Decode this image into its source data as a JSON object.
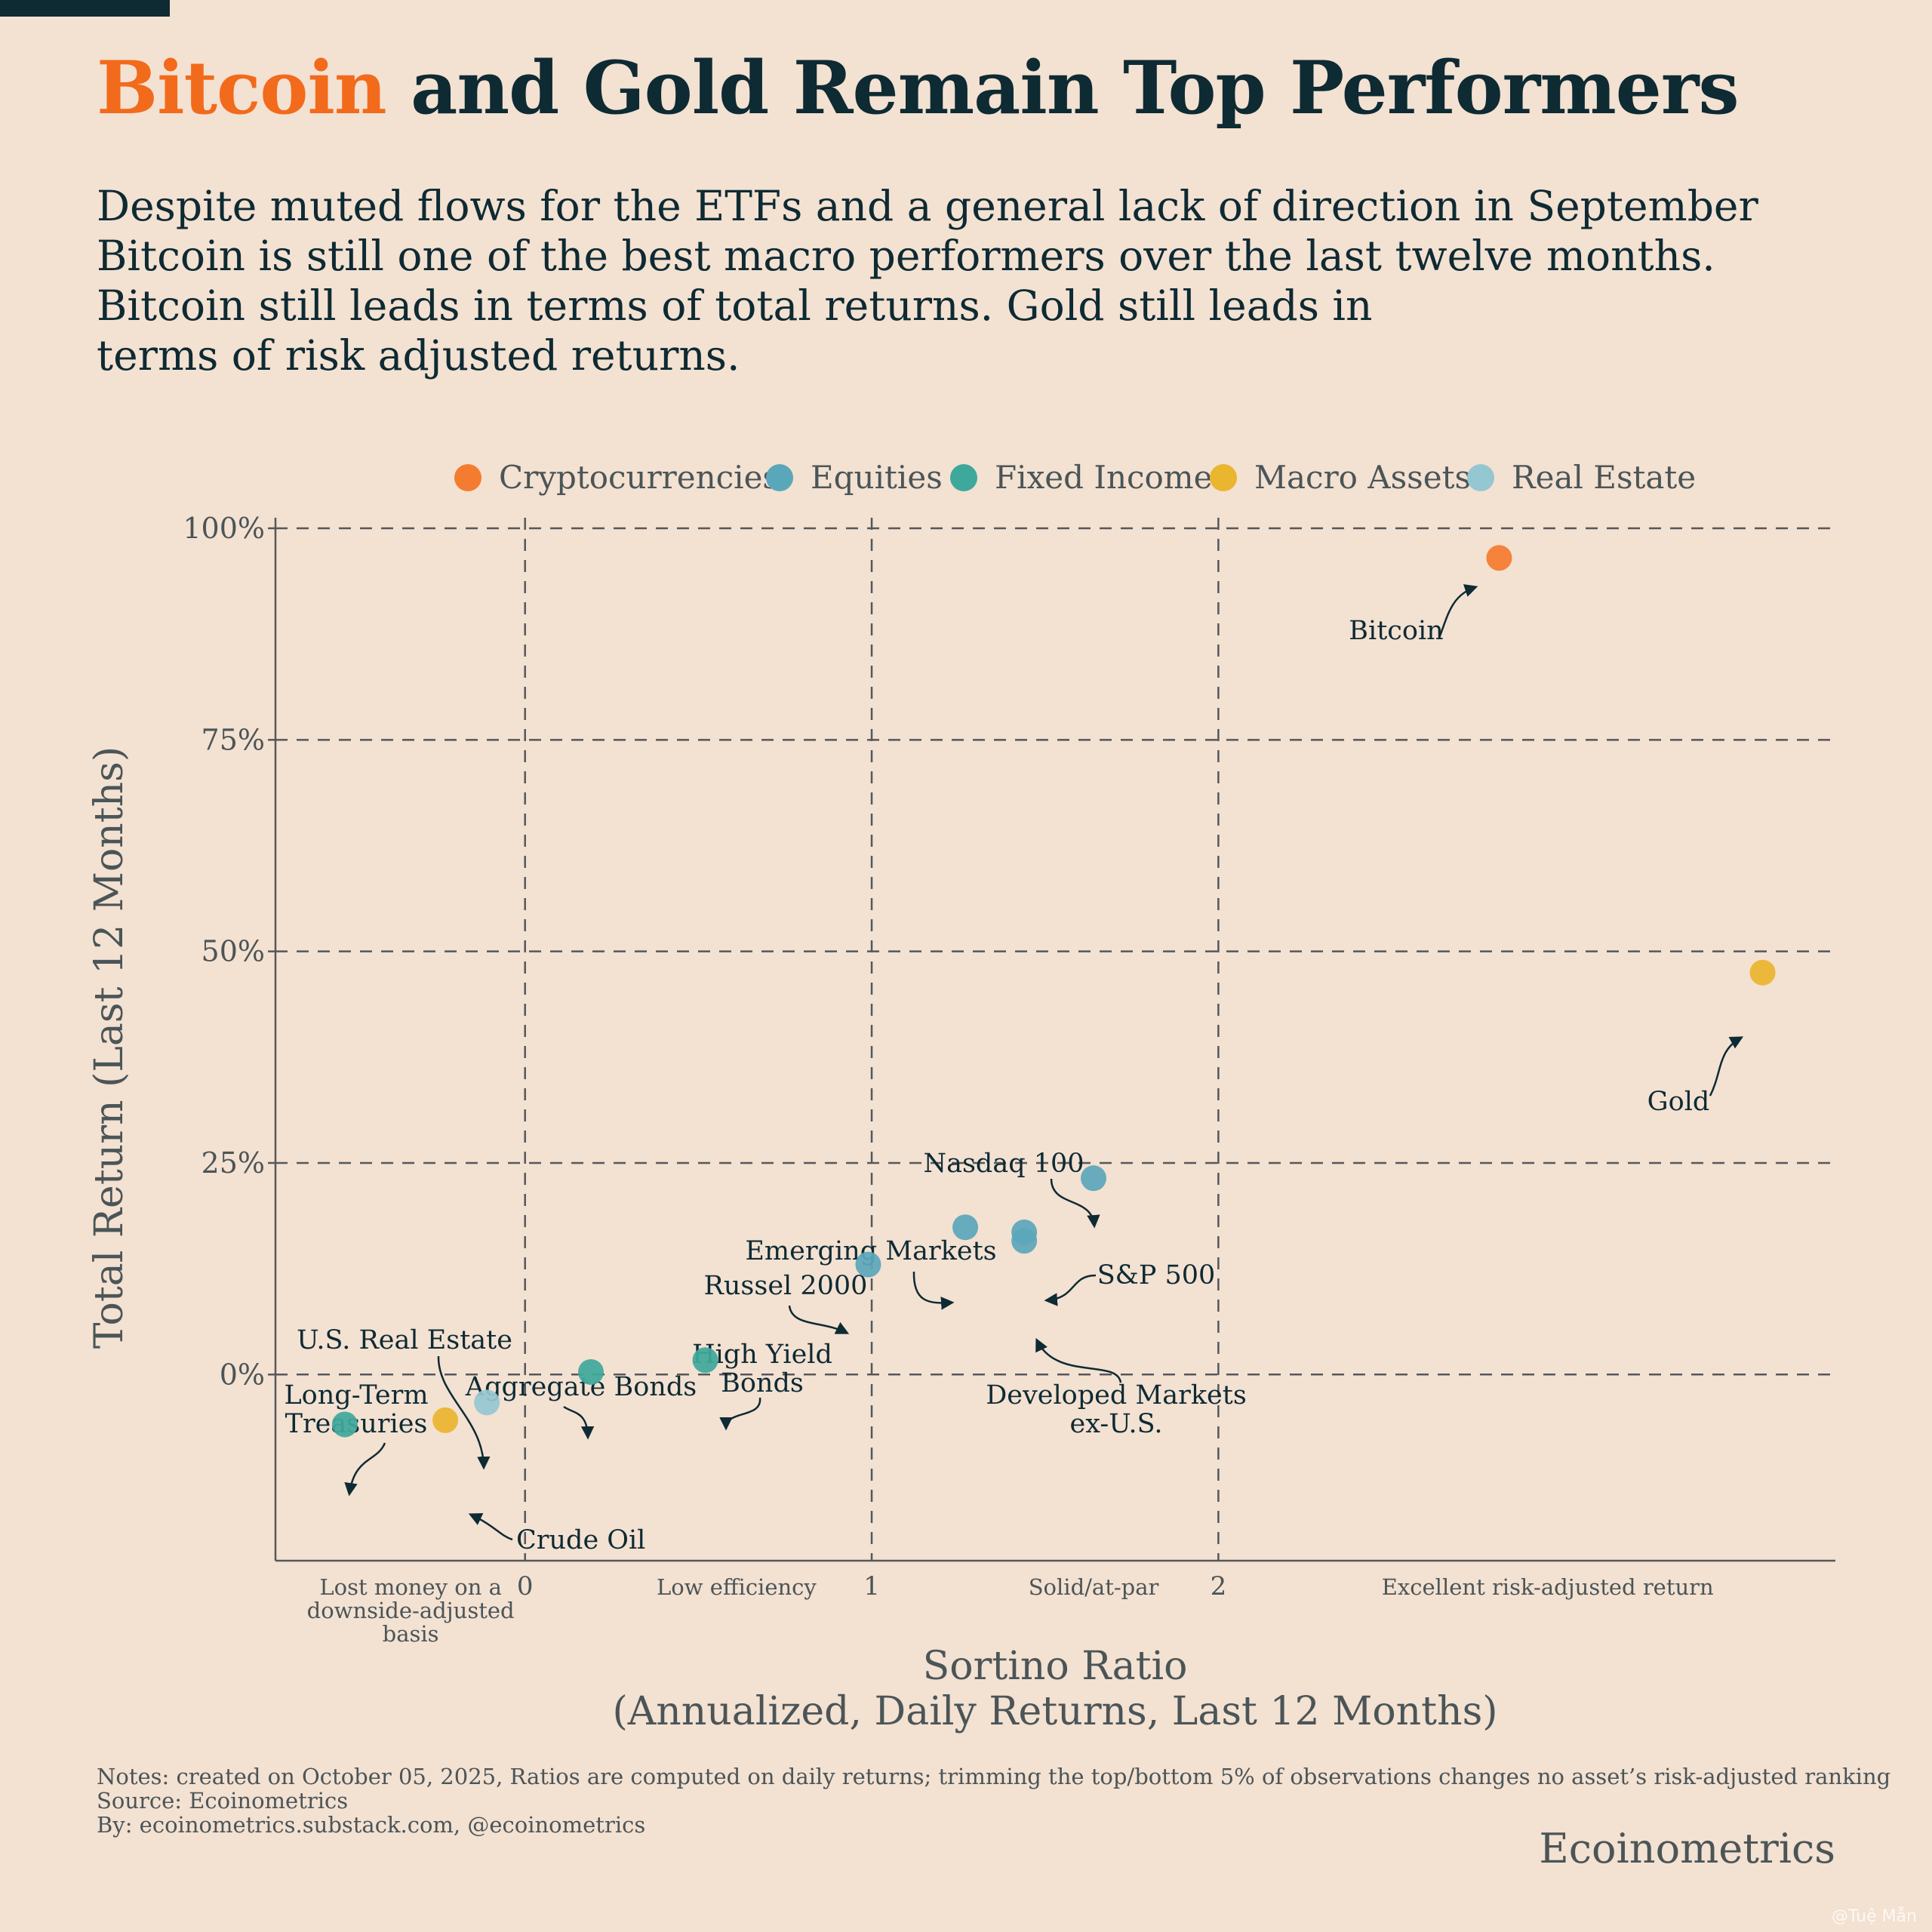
{
  "title": {
    "highlight": "Bitcoin",
    "rest": " and Gold Remain Top Performers"
  },
  "subtitle": [
    "Despite muted flows for the ETFs and a general lack of direction in September",
    "Bitcoin is still one of the best macro performers over the last twelve months.",
    "Bitcoin still leads in terms of total returns. Gold still leads in",
    "terms of risk adjusted returns."
  ],
  "colors": {
    "background": "#f3e1d2",
    "title_accent": "#f26a1b",
    "text": "#0e2a33",
    "muted_text": "#4b5557",
    "grid": "#55585a"
  },
  "chart_data": {
    "type": "scatter",
    "xlabel": [
      "Sortino Ratio",
      "(Annualized, Daily Returns, Last 12 Months)"
    ],
    "ylabel": "Total Return (Last 12 Months)",
    "xlim": [
      -0.72,
      3.78
    ],
    "ylim": [
      -0.22,
      1.0
    ],
    "x_ticks": [
      0,
      1,
      2
    ],
    "y_ticks": [
      {
        "value": 0,
        "label": "0%"
      },
      {
        "value": 0.25,
        "label": "25%"
      },
      {
        "value": 0.5,
        "label": "50%"
      },
      {
        "value": 0.75,
        "label": "75%"
      },
      {
        "value": 1.0,
        "label": "100%"
      }
    ],
    "region_labels": [
      {
        "text": [
          "Lost money on a",
          "downside-adjusted",
          "basis"
        ],
        "x": -0.33
      },
      {
        "text": [
          "Low efficiency"
        ],
        "x": 0.61
      },
      {
        "text": [
          "Solid/at-par"
        ],
        "x": 1.64
      },
      {
        "text": [
          "Excellent risk-adjusted return"
        ],
        "x": 2.95
      }
    ],
    "grid": true,
    "legend_position": "top-center",
    "categories": [
      {
        "name": "Cryptocurrencies",
        "color": "#f47c30"
      },
      {
        "name": "Equities",
        "color": "#5ba7ba"
      },
      {
        "name": "Fixed Income",
        "color": "#3fa89c"
      },
      {
        "name": "Macro Assets",
        "color": "#eab52f"
      },
      {
        "name": "Real Estate",
        "color": "#95c7d2"
      }
    ],
    "points": [
      {
        "name": "Bitcoin",
        "category": "Cryptocurrencies",
        "x": 2.81,
        "y": 0.965
      },
      {
        "name": "Gold",
        "category": "Macro Assets",
        "x": 3.57,
        "y": 0.475
      },
      {
        "name": "Nasdaq 100",
        "category": "Equities",
        "x": 1.64,
        "y": 0.232
      },
      {
        "name": "S&P 500",
        "category": "Equities",
        "x": 1.44,
        "y": 0.168
      },
      {
        "name": "Developed Markets ex-U.S.",
        "category": "Equities",
        "x": 1.44,
        "y": 0.158
      },
      {
        "name": "Emerging Markets",
        "category": "Equities",
        "x": 1.27,
        "y": 0.174
      },
      {
        "name": "Russel 2000",
        "category": "Equities",
        "x": 0.99,
        "y": 0.13
      },
      {
        "name": "High Yield Bonds",
        "category": "Fixed Income",
        "x": 0.52,
        "y": 0.017
      },
      {
        "name": "Aggregate Bonds",
        "category": "Fixed Income",
        "x": 0.19,
        "y": 0.003
      },
      {
        "name": "U.S. Real Estate",
        "category": "Real Estate",
        "x": -0.11,
        "y": -0.033
      },
      {
        "name": "Crude Oil",
        "category": "Macro Assets",
        "x": -0.23,
        "y": -0.054
      },
      {
        "name": "Long-Term Treasuries",
        "category": "Fixed Income",
        "x": -0.52,
        "y": -0.059
      }
    ],
    "annotations": [
      {
        "point": "Bitcoin",
        "text": [
          "Bitcoin"
        ]
      },
      {
        "point": "Gold",
        "text": [
          "Gold"
        ]
      },
      {
        "point": "Nasdaq 100",
        "text": [
          "Nasdaq 100"
        ]
      },
      {
        "point": "S&P 500",
        "text": [
          "S&P 500"
        ]
      },
      {
        "point": "Developed Markets ex-U.S.",
        "text": [
          "Developed Markets",
          "ex-U.S."
        ]
      },
      {
        "point": "Emerging Markets",
        "text": [
          "Emerging Markets"
        ]
      },
      {
        "point": "Russel 2000",
        "text": [
          "Russel 2000"
        ]
      },
      {
        "point": "High Yield Bonds",
        "text": [
          "High Yield",
          "Bonds"
        ]
      },
      {
        "point": "Aggregate Bonds",
        "text": [
          "Aggregate Bonds"
        ]
      },
      {
        "point": "U.S. Real Estate",
        "text": [
          "U.S. Real Estate"
        ]
      },
      {
        "point": "Crude Oil",
        "text": [
          "Crude Oil"
        ]
      },
      {
        "point": "Long-Term Treasuries",
        "text": [
          "Long-Term",
          "Treasuries"
        ]
      }
    ]
  },
  "notes": [
    "Notes: created on October 05, 2025, Ratios are computed on daily returns; trimming the top/bottom 5% of observations changes no asset’s risk-adjusted ranking",
    "Source: Ecoinometrics",
    "By: ecoinometrics.substack.com, @ecoinometrics"
  ],
  "brand": "Ecoinometrics",
  "watermark": "@Tuệ Mẫn"
}
